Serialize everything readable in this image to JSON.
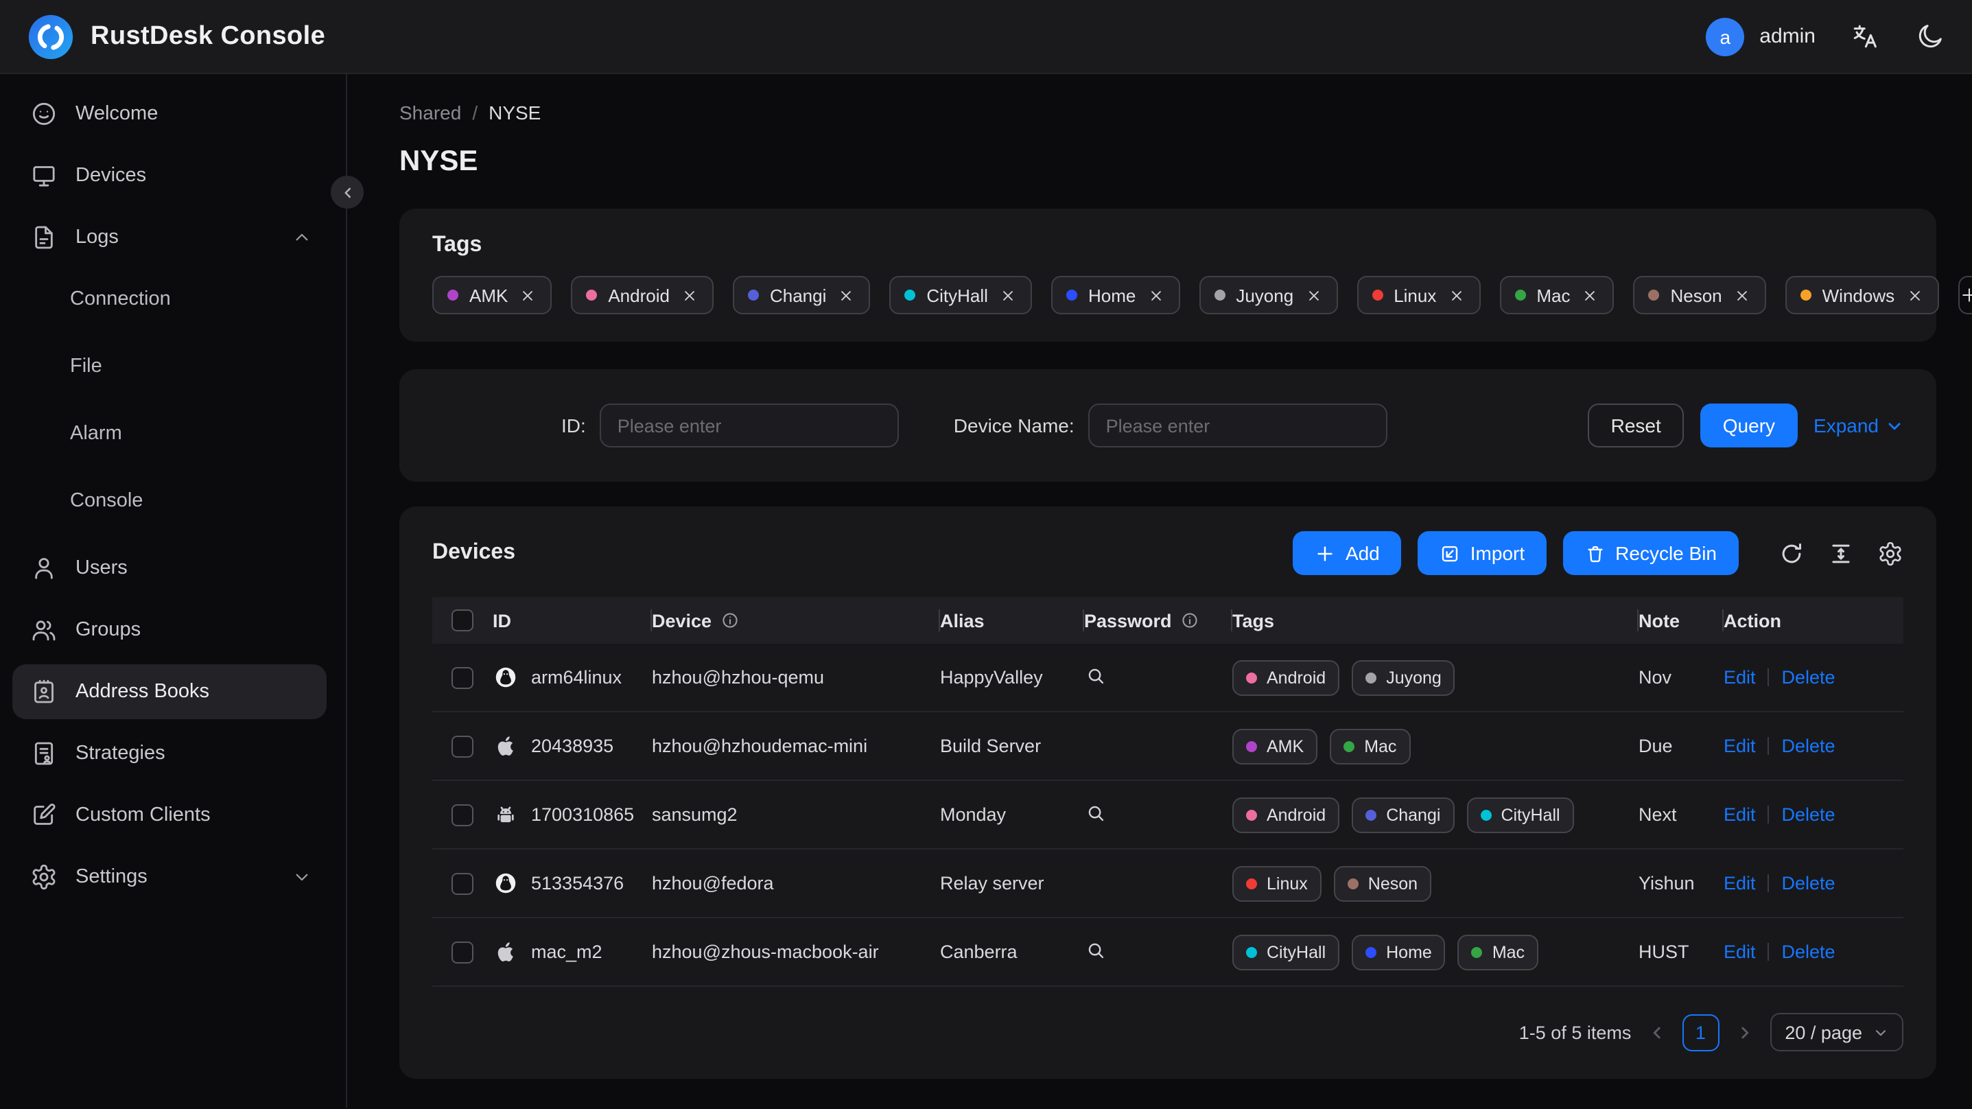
{
  "topbar": {
    "app_title": "RustDesk Console",
    "user": {
      "avatar_letter": "a",
      "name": "admin"
    }
  },
  "sidebar": {
    "items": [
      {
        "label": "Welcome",
        "icon": "smiley-icon"
      },
      {
        "label": "Devices",
        "icon": "monitor-icon"
      },
      {
        "label": "Logs",
        "icon": "file-icon",
        "chevron": "chevron-up-icon"
      },
      {
        "label": "Connection",
        "sub": true
      },
      {
        "label": "File",
        "sub": true
      },
      {
        "label": "Alarm",
        "sub": true
      },
      {
        "label": "Console",
        "sub": true
      },
      {
        "label": "Users",
        "icon": "user-icon"
      },
      {
        "label": "Groups",
        "icon": "users-icon"
      },
      {
        "label": "Address Books",
        "icon": "address-book-icon",
        "selected": true
      },
      {
        "label": "Strategies",
        "icon": "strategy-icon"
      },
      {
        "label": "Custom Clients",
        "icon": "edit-square-icon"
      },
      {
        "label": "Settings",
        "icon": "gear-icon",
        "chevron": "chevron-down-icon"
      }
    ]
  },
  "breadcrumb": {
    "parent": "Shared",
    "separator": "/",
    "current": "NYSE"
  },
  "page_title": "NYSE",
  "tag_colors": {
    "AMK": "#b044c8",
    "Android": "#ed6ea0",
    "Changi": "#5560d8",
    "CityHall": "#00c2d7",
    "Home": "#2b4eff",
    "Juyong": "#a3a3a8",
    "Linux": "#f03b36",
    "Mac": "#35a545",
    "Neson": "#9b7166",
    "Windows": "#f5a128"
  },
  "tags_card": {
    "title": "Tags",
    "tags": [
      "AMK",
      "Android",
      "Changi",
      "CityHall",
      "Home",
      "Juyong",
      "Linux",
      "Mac",
      "Neson",
      "Windows"
    ],
    "add_button": "+"
  },
  "filter": {
    "id_label": "ID:",
    "id_placeholder": "Please enter",
    "device_name_label": "Device Name:",
    "device_name_placeholder": "Please enter",
    "reset_button": "Reset",
    "query_button": "Query",
    "expand_button": "Expand"
  },
  "devices": {
    "title": "Devices",
    "add_button": "Add",
    "import_button": "Import",
    "recycle_bin_button": "Recycle Bin",
    "columns": {
      "id": "ID",
      "device": "Device",
      "alias": "Alias",
      "password": "Password",
      "tags": "Tags",
      "note": "Note",
      "action": "Action"
    },
    "rows": [
      {
        "os": "linux",
        "id": "arm64linux",
        "device": "hzhou@hzhou-qemu",
        "alias": "HappyValley",
        "has_password": true,
        "tags": [
          "Android",
          "Juyong"
        ],
        "note": "Nov"
      },
      {
        "os": "apple",
        "id": "20438935",
        "device": "hzhou@hzhoudemac-mini",
        "alias": "Build Server",
        "has_password": false,
        "tags": [
          "AMK",
          "Mac"
        ],
        "note": "Due"
      },
      {
        "os": "android",
        "id": "1700310865",
        "device": "sansumg2",
        "alias": "Monday",
        "has_password": true,
        "tags": [
          "Android",
          "Changi",
          "CityHall"
        ],
        "note": "Next"
      },
      {
        "os": "linux",
        "id": "513354376",
        "device": "hzhou@fedora",
        "alias": "Relay server",
        "has_password": false,
        "tags": [
          "Linux",
          "Neson"
        ],
        "note": "Yishun"
      },
      {
        "os": "apple",
        "id": "mac_m2",
        "device": "hzhou@zhous-macbook-air",
        "alias": "Canberra",
        "has_password": true,
        "tags": [
          "CityHall",
          "Home",
          "Mac"
        ],
        "note": "HUST"
      }
    ],
    "edit_label": "Edit",
    "delete_label": "Delete",
    "pagination": {
      "summary": "1-5 of 5 items",
      "current_page": "1",
      "page_size": "20 / page"
    }
  },
  "colors": {
    "accent": "#1677ff"
  }
}
